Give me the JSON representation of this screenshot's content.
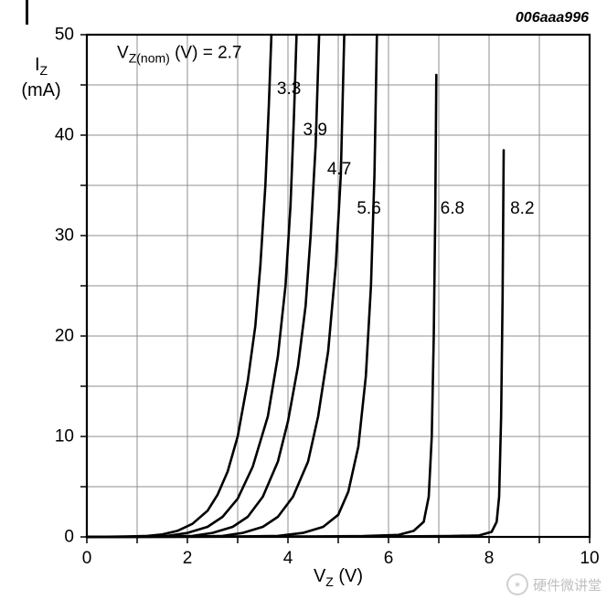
{
  "figure_code": "006aaa996",
  "watermark": {
    "text": "硬件微讲堂"
  },
  "chart_data": {
    "type": "line",
    "title": "",
    "xlabel": "VZ (V)",
    "ylabel": "IZ (mA)",
    "xlabel_parts": {
      "pre": "V",
      "sub": "Z",
      "unit": " (V)"
    },
    "ylabel_parts": {
      "pre": "I",
      "sub": "Z",
      "unit": "(mA)"
    },
    "xlim": [
      0,
      10
    ],
    "ylim": [
      0,
      50
    ],
    "x_tick_labels": [
      0,
      2,
      4,
      6,
      8,
      10
    ],
    "x_grid_step": 1,
    "y_tick_labels": [
      0,
      10,
      20,
      30,
      40,
      50
    ],
    "y_grid_step": 5,
    "grid": true,
    "legend_position": "inside-top-left",
    "legend_heading": {
      "pre": "V",
      "sub": "Z(nom)",
      "post": " (V) = 2.7",
      "x": 0.6,
      "y": 47.7
    },
    "curve_labels": [
      {
        "text": "3.3",
        "x": 3.78,
        "y": 44.6
      },
      {
        "text": "3.9",
        "x": 4.3,
        "y": 40.5
      },
      {
        "text": "4.7",
        "x": 4.78,
        "y": 36.6
      },
      {
        "text": "5.6",
        "x": 5.37,
        "y": 32.7
      },
      {
        "text": "6.8",
        "x": 7.03,
        "y": 32.7
      },
      {
        "text": "8.2",
        "x": 8.42,
        "y": 32.7
      }
    ],
    "series": [
      {
        "name": "2.7",
        "points": [
          [
            0,
            0
          ],
          [
            0.8,
            0.05
          ],
          [
            1.2,
            0.1
          ],
          [
            1.5,
            0.25
          ],
          [
            1.8,
            0.6
          ],
          [
            2.1,
            1.3
          ],
          [
            2.4,
            2.6
          ],
          [
            2.6,
            4.2
          ],
          [
            2.8,
            6.5
          ],
          [
            3.0,
            10
          ],
          [
            3.2,
            15.5
          ],
          [
            3.35,
            21
          ],
          [
            3.45,
            27
          ],
          [
            3.55,
            35
          ],
          [
            3.62,
            43
          ],
          [
            3.67,
            50
          ]
        ]
      },
      {
        "name": "3.3",
        "points": [
          [
            0,
            0
          ],
          [
            1.2,
            0.05
          ],
          [
            1.6,
            0.1
          ],
          [
            2.0,
            0.4
          ],
          [
            2.4,
            1.0
          ],
          [
            2.7,
            2.0
          ],
          [
            3.0,
            3.8
          ],
          [
            3.3,
            7
          ],
          [
            3.6,
            12
          ],
          [
            3.8,
            18
          ],
          [
            3.95,
            25
          ],
          [
            4.05,
            33
          ],
          [
            4.12,
            42
          ],
          [
            4.17,
            50
          ]
        ]
      },
      {
        "name": "3.9",
        "points": [
          [
            0,
            0
          ],
          [
            1.6,
            0.05
          ],
          [
            2.1,
            0.1
          ],
          [
            2.5,
            0.4
          ],
          [
            2.9,
            1.0
          ],
          [
            3.2,
            2.0
          ],
          [
            3.5,
            4
          ],
          [
            3.8,
            7.5
          ],
          [
            4.0,
            11.5
          ],
          [
            4.2,
            17
          ],
          [
            4.35,
            23
          ],
          [
            4.45,
            30
          ],
          [
            4.55,
            39
          ],
          [
            4.62,
            50
          ]
        ]
      },
      {
        "name": "4.7",
        "points": [
          [
            0,
            0
          ],
          [
            2.2,
            0.05
          ],
          [
            2.7,
            0.1
          ],
          [
            3.1,
            0.4
          ],
          [
            3.5,
            1.0
          ],
          [
            3.8,
            2.0
          ],
          [
            4.1,
            4
          ],
          [
            4.4,
            7.5
          ],
          [
            4.6,
            12
          ],
          [
            4.8,
            18.5
          ],
          [
            4.95,
            27
          ],
          [
            5.05,
            36
          ],
          [
            5.12,
            50
          ]
        ]
      },
      {
        "name": "5.6",
        "points": [
          [
            0,
            0
          ],
          [
            3.0,
            0.05
          ],
          [
            3.8,
            0.1
          ],
          [
            4.3,
            0.4
          ],
          [
            4.7,
            1.0
          ],
          [
            5.0,
            2.2
          ],
          [
            5.2,
            4.5
          ],
          [
            5.4,
            9
          ],
          [
            5.55,
            16
          ],
          [
            5.65,
            25
          ],
          [
            5.72,
            36
          ],
          [
            5.77,
            50
          ]
        ]
      },
      {
        "name": "6.8",
        "points": [
          [
            0,
            0
          ],
          [
            4.5,
            0.05
          ],
          [
            5.5,
            0.08
          ],
          [
            6.2,
            0.2
          ],
          [
            6.5,
            0.6
          ],
          [
            6.7,
            1.5
          ],
          [
            6.8,
            4
          ],
          [
            6.86,
            10
          ],
          [
            6.9,
            20
          ],
          [
            6.93,
            32
          ],
          [
            6.95,
            46
          ]
        ]
      },
      {
        "name": "8.2",
        "points": [
          [
            0,
            0
          ],
          [
            6.0,
            0.05
          ],
          [
            7.2,
            0.08
          ],
          [
            7.8,
            0.15
          ],
          [
            8.05,
            0.5
          ],
          [
            8.15,
            1.5
          ],
          [
            8.2,
            4
          ],
          [
            8.24,
            12
          ],
          [
            8.27,
            24
          ],
          [
            8.29,
            38.5
          ]
        ]
      }
    ],
    "colors": {
      "curve": "#000000",
      "grid": "#8f8f8f",
      "frame": "#000000"
    }
  }
}
